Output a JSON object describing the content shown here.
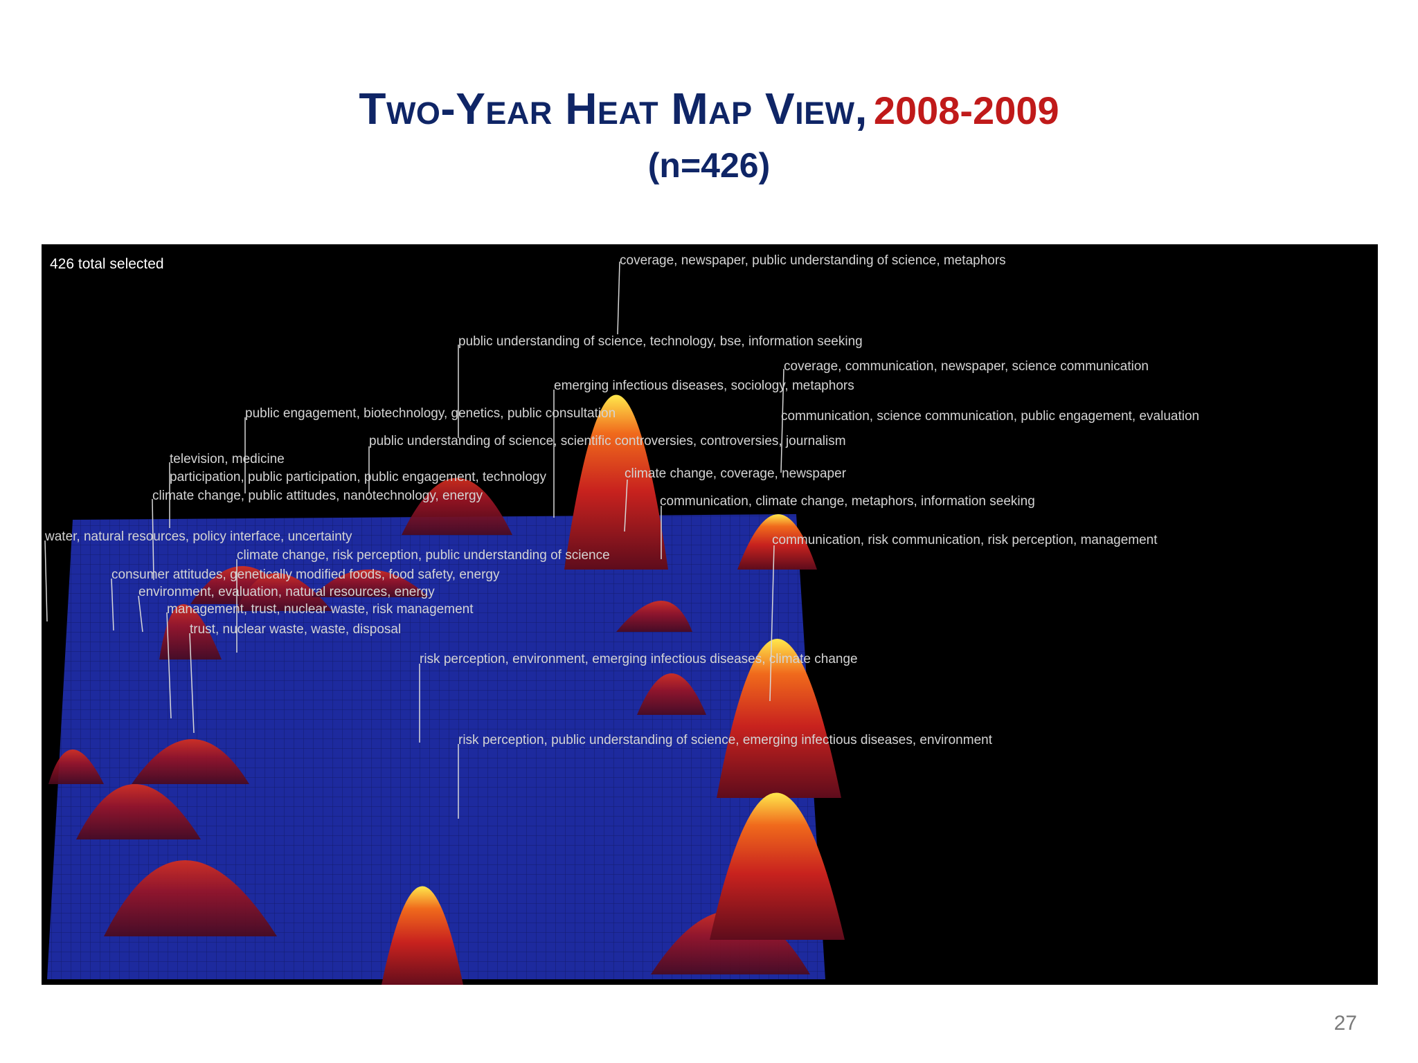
{
  "slide": {
    "title": "Two-Year Heat Map View,",
    "title_years": "2008-2009",
    "subtitle": "(n=426)",
    "page_number": "27"
  },
  "heatmap": {
    "status_text": "426 total selected",
    "colors": {
      "plane": "#1d2a9e",
      "peak_low": "#7a1020",
      "peak_mid": "#e0301a",
      "peak_high": "#ffe24a"
    },
    "labels": [
      "coverage, newspaper, public understanding of science, metaphors",
      "public understanding of science, technology, bse, information seeking",
      "coverage, communication, newspaper, science communication",
      "emerging infectious diseases, sociology, metaphors",
      "public engagement, biotechnology, genetics, public consultation",
      "communication, science communication, public engagement, evaluation",
      "public understanding of science, scientific controversies, controversies, journalism",
      "television, medicine",
      "participation, public participation, public engagement, technology",
      "climate change, coverage, newspaper",
      "climate change, public attitudes, nanotechnology, energy",
      "communication, climate change, metaphors, information seeking",
      "water, natural resources, policy interface, uncertainty",
      "communication, risk communication, risk perception, management",
      "climate change, risk perception, public understanding of science",
      "consumer attitudes, genetically modified foods, food safety, energy",
      "environment, evaluation, natural resources, energy",
      "management, trust, nuclear waste, risk management",
      "trust, nuclear waste, waste, disposal",
      "risk perception, environment, emerging infectious diseases, climate change",
      "risk perception, public understanding of science, emerging infectious diseases, environment"
    ]
  }
}
